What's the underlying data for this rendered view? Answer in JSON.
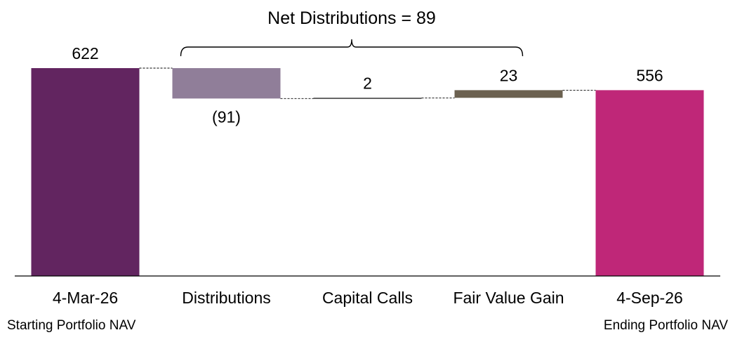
{
  "chart_data": {
    "type": "waterfall",
    "title": "",
    "categories": [
      "4-Mar-26",
      "Distributions",
      "Capital Calls",
      "Fair Value Gain",
      "4-Sep-26"
    ],
    "subcategories": [
      "Starting Portfolio NAV",
      "",
      "",
      "",
      "Ending Portfolio NAV"
    ],
    "values": [
      622,
      -91,
      2,
      23,
      556
    ],
    "kinds": [
      "total",
      "delta",
      "delta",
      "delta",
      "total"
    ],
    "value_labels": [
      "622",
      "(91)",
      "2",
      "23",
      "556"
    ],
    "colors": [
      "#622560",
      "#907e99",
      "#000000",
      "#6b6150",
      "#bf2778"
    ],
    "annotation": {
      "text": "Net Distributions = 89",
      "from_category": 1,
      "to_category": 3
    },
    "ylim": [
      0,
      622
    ],
    "grid": false,
    "legend": "none",
    "connectors": "dashed"
  }
}
